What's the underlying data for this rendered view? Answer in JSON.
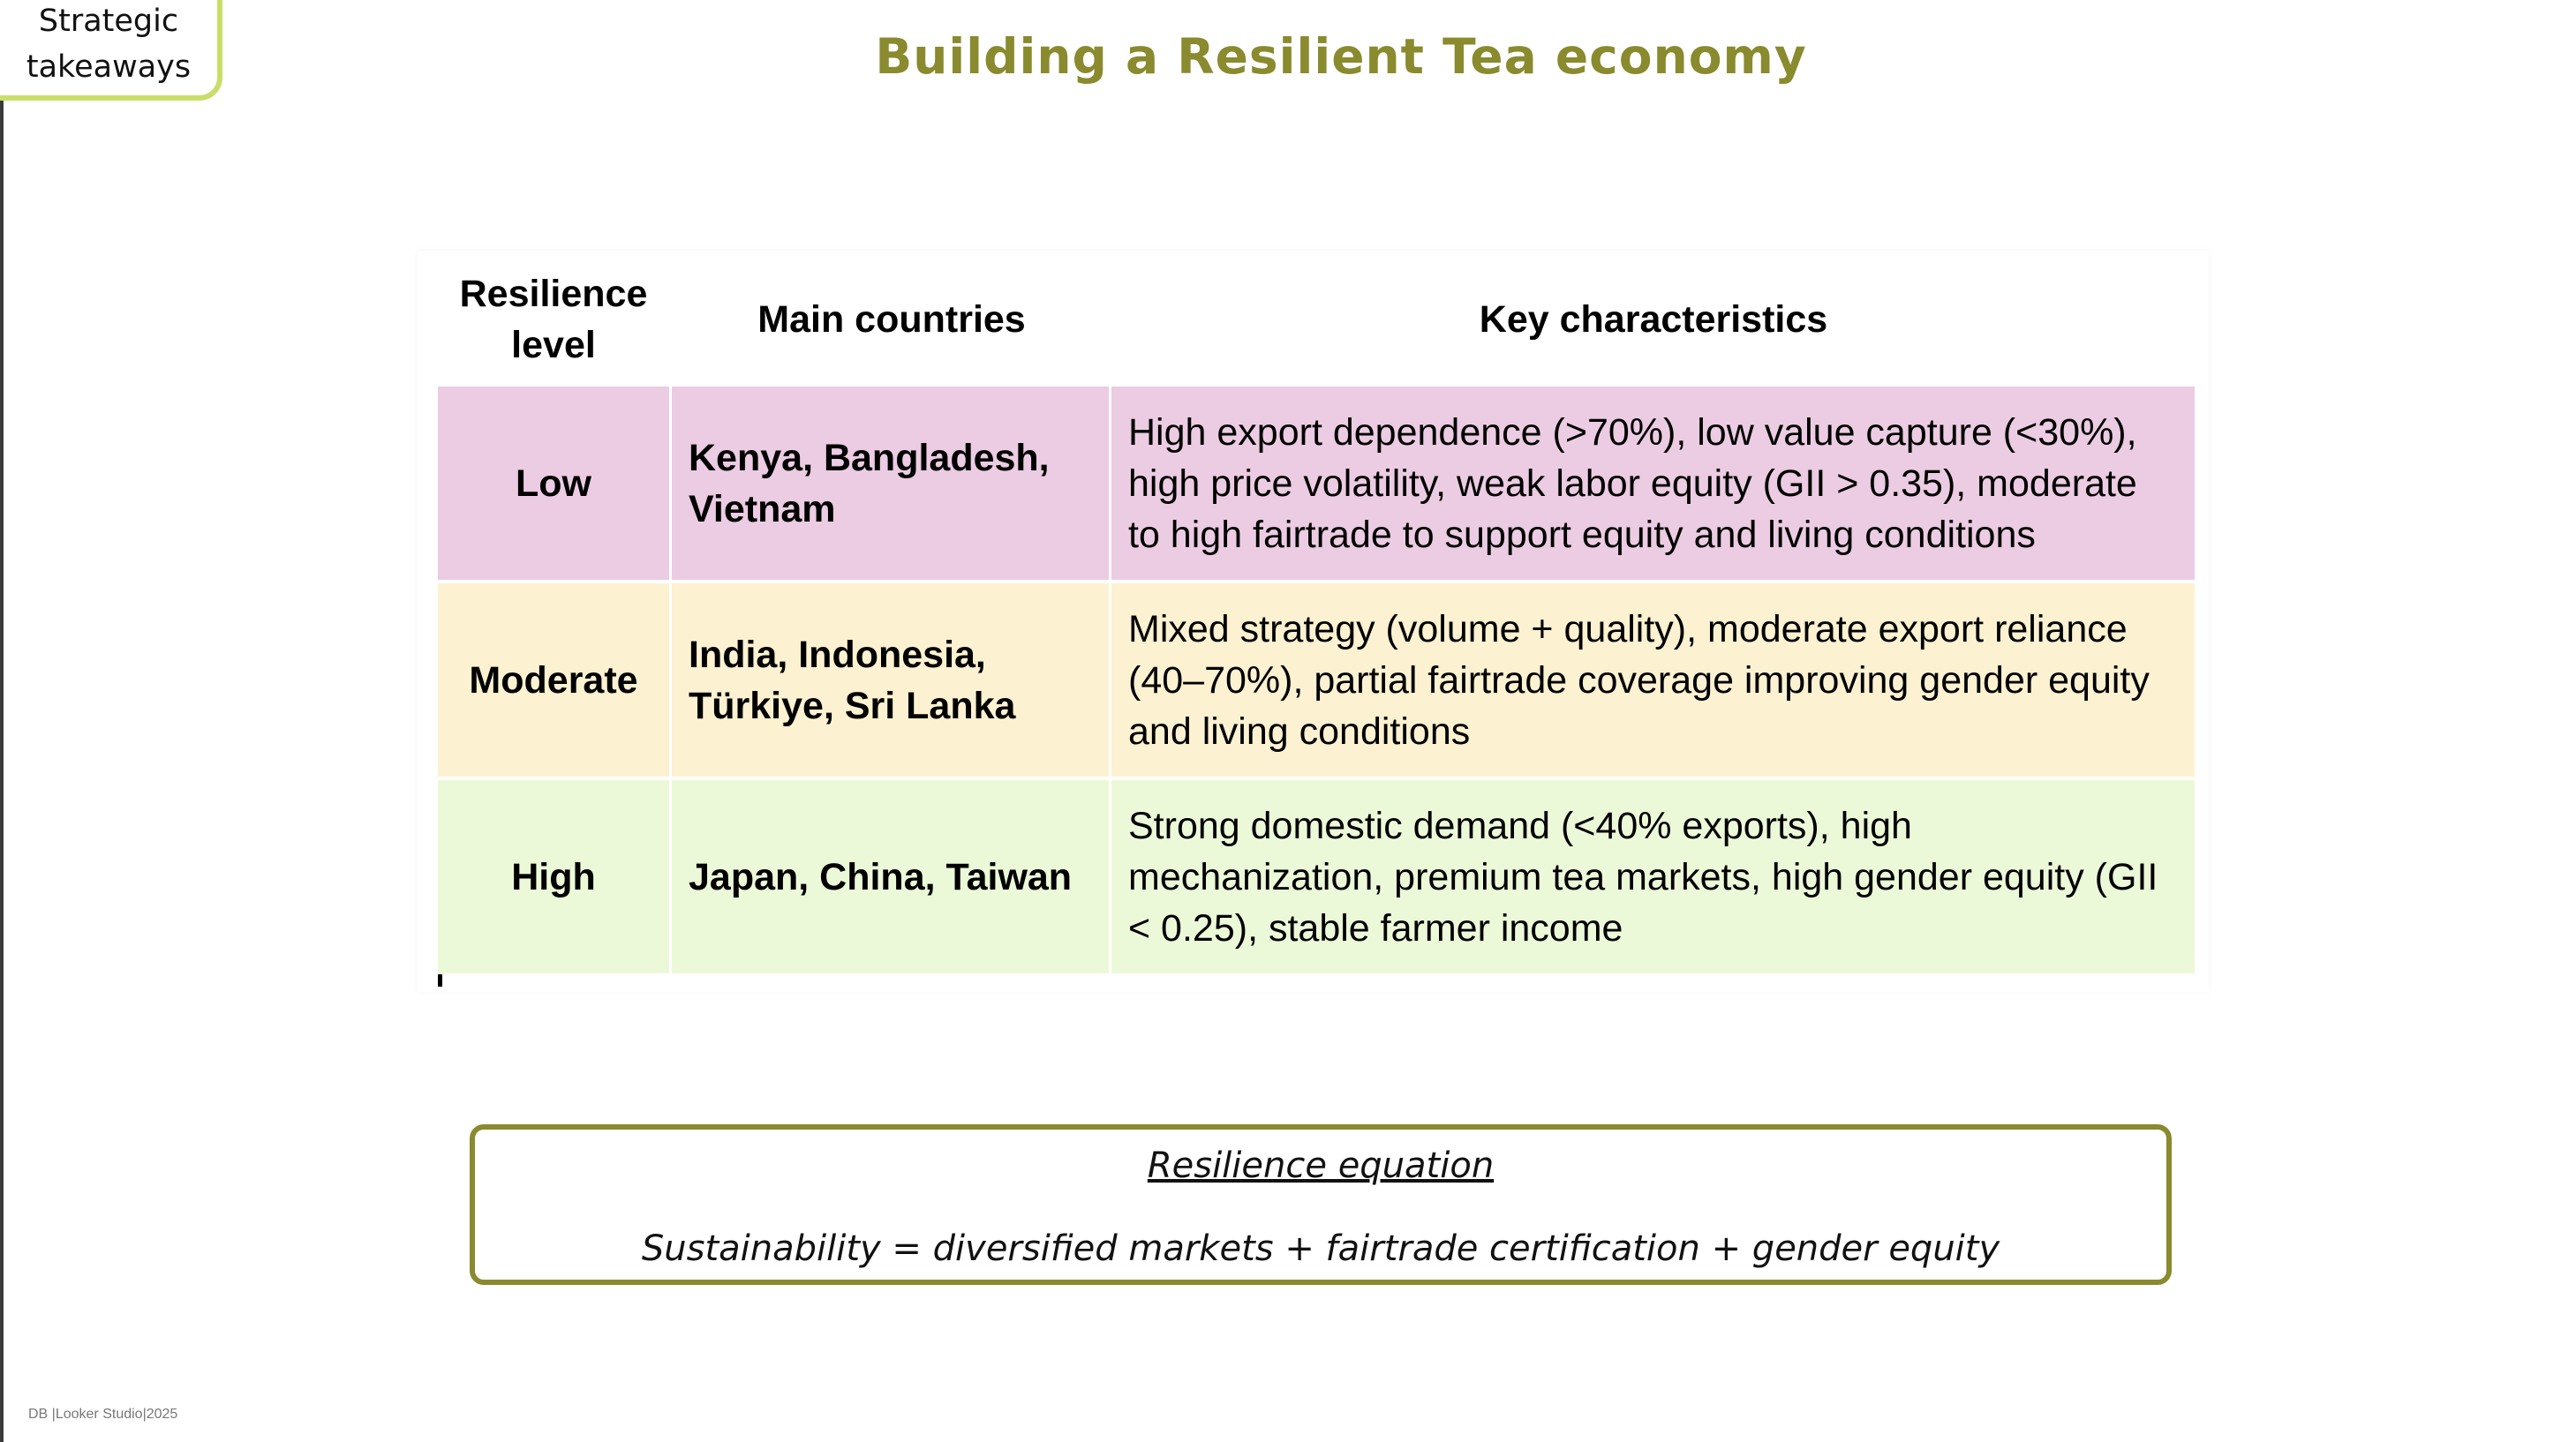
{
  "tag": {
    "label": "Strategic\ntakeaways"
  },
  "page": {
    "title": "Building a Resilient Tea economy"
  },
  "table": {
    "headers": [
      "Resilience level",
      "Main countries",
      "Key characteristics"
    ],
    "rows": [
      {
        "level": "Low",
        "countries": "Kenya, Bangladesh, Vietnam",
        "characteristics": "High export dependence (>70%), low value capture (<30%), high price volatility, weak labor equity (GII > 0.35), moderate to high fairtrade to support equity and living conditions",
        "color": "#ebcce2"
      },
      {
        "level": "Moderate",
        "countries": "India, Indonesia, Türkiye, Sri Lanka",
        "characteristics": "Mixed strategy (volume + quality), moderate export reliance (40–70%), partial fairtrade coverage improving gender equity and living conditions",
        "color": "#fcf1d1"
      },
      {
        "level": "High",
        "countries": "Japan, China, Taiwan",
        "characteristics": "Strong domestic demand (<40% exports), high mechanization, premium tea markets, high gender equity (GII < 0.25), stable farmer income",
        "color": "#ecf9d9"
      }
    ]
  },
  "equation": {
    "title": "Resilience equation",
    "text": "Sustainability = diversified markets + fairtrade certification + gender equity"
  },
  "footer": {
    "text": "DB |Looker Studio|2025"
  },
  "colors": {
    "accent": "#8a8a2e",
    "tag_border": "#c9de6a"
  }
}
